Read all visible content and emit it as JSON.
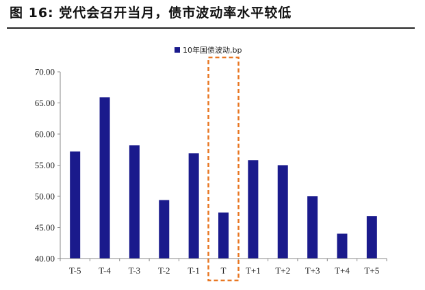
{
  "figure": {
    "title": "图 16: 党代会召开当月，债市波动率水平较低"
  },
  "chart_data": {
    "type": "bar",
    "categories": [
      "T-5",
      "T-4",
      "T-3",
      "T-2",
      "T-1",
      "T",
      "T+1",
      "T+2",
      "T+3",
      "T+4",
      "T+5"
    ],
    "series": [
      {
        "name": "10年国债波动,bp",
        "values": [
          57.2,
          65.9,
          58.2,
          49.4,
          56.9,
          47.4,
          55.8,
          55.0,
          50.0,
          44.0,
          46.8
        ],
        "color": "#1a1a8c"
      }
    ],
    "y_ticks": [
      "40.00",
      "45.00",
      "50.00",
      "55.00",
      "60.00",
      "65.00",
      "70.00"
    ],
    "ylim": [
      40,
      70
    ],
    "title": "",
    "xlabel": "",
    "ylabel": "",
    "grid": false,
    "legend_position": "top-center",
    "highlight": {
      "category": "T",
      "style": "dashed-box",
      "color": "#e87722"
    }
  }
}
